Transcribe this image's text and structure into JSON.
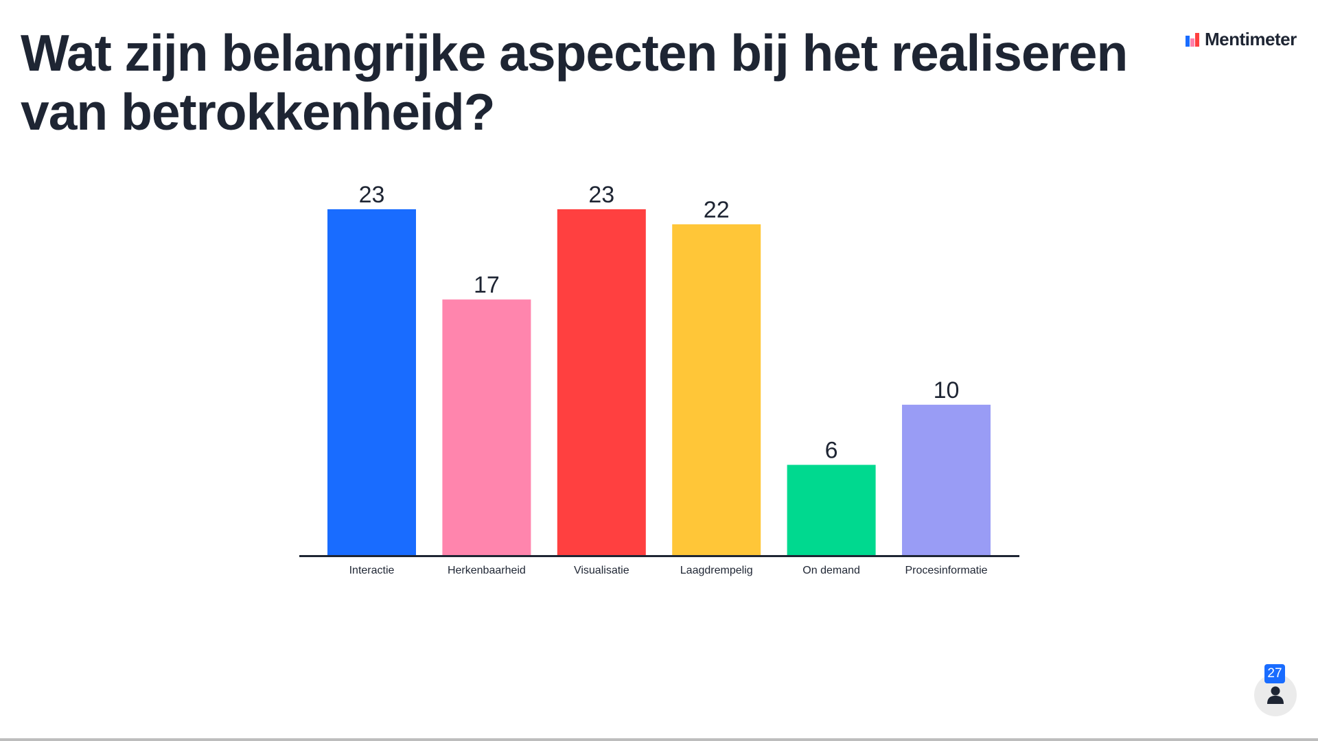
{
  "slide": {
    "title": "Wat zijn belangrijke aspecten bij het realiseren van betrokkenheid?"
  },
  "brand": {
    "name": "Mentimeter",
    "logo_colors": [
      "#196cff",
      "#ff80ab",
      "#ff4040"
    ]
  },
  "participants": {
    "count": "27",
    "icon": "person-icon"
  },
  "chart_data": {
    "type": "bar",
    "title": "",
    "xlabel": "",
    "ylabel": "",
    "categories": [
      "Interactie",
      "Herkenbaarheid",
      "Visualisatie",
      "Laagdrempelig",
      "On demand",
      "Procesinformatie"
    ],
    "values": [
      23,
      17,
      23,
      22,
      6,
      10
    ],
    "colors": [
      "#196cff",
      "#ff85ad",
      "#ff4040",
      "#ffc638",
      "#00d98f",
      "#999cf5"
    ],
    "ylim": [
      0,
      23
    ],
    "grid": false,
    "legend": "none"
  }
}
